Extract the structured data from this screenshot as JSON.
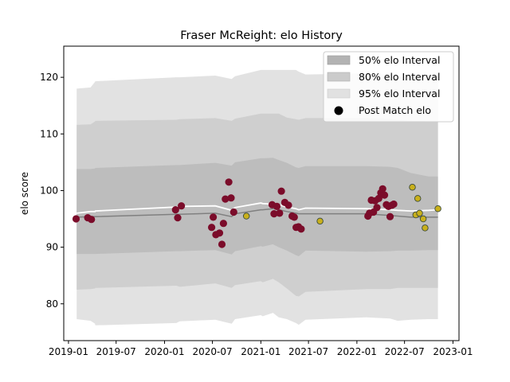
{
  "chart_data": {
    "type": "scatter",
    "title": "Fraser McReight: elo History",
    "xlabel": "",
    "ylabel": "elo score",
    "x_ticks": [
      "2019-01",
      "2019-07",
      "2020-01",
      "2020-07",
      "2021-01",
      "2021-07",
      "2022-01",
      "2022-07",
      "2023-01"
    ],
    "x_range": [
      "2018-12-14",
      "2023-01-24"
    ],
    "y_ticks": [
      80,
      90,
      100,
      110,
      120
    ],
    "ylim": [
      73.5,
      125.5
    ],
    "grid": false,
    "legend_position": "top-right",
    "legend": [
      {
        "label": "50% elo Interval",
        "color": "#b3b3b3"
      },
      {
        "label": "80% elo Interval",
        "color": "#cbcbcb"
      },
      {
        "label": "95% elo Interval",
        "color": "#e1e1e1"
      },
      {
        "label": "Post Match elo",
        "color": "#000000"
      }
    ],
    "colors": {
      "band_50": "#bdbdbd",
      "band_80": "#cfcfcf",
      "band_95": "#e2e2e2",
      "median_line": "#808080",
      "mean_line": "#ffffff",
      "point_dark": "#7b0c2a",
      "point_gold": "#c9b01c"
    },
    "bands": {
      "x": [
        "2019-02-01",
        "2019-03-26",
        "2019-04-12",
        "2019-04-13",
        "2020-02-15",
        "2020-02-28",
        "2020-07-12",
        "2020-09-12",
        "2020-09-25",
        "2021-01-01",
        "2021-01-08",
        "2021-02-16",
        "2021-03-10",
        "2021-04-10",
        "2021-05-14",
        "2021-05-25",
        "2021-06-20",
        "2022-02-05",
        "2022-05-07",
        "2022-06-05",
        "2022-07-25",
        "2022-10-01",
        "2022-11-05"
      ],
      "p2_5": [
        77.3,
        77.0,
        76.5,
        76.2,
        76.6,
        76.9,
        77.2,
        76.5,
        77.3,
        78.0,
        77.8,
        78.4,
        77.6,
        77.3,
        76.6,
        76.3,
        77.2,
        77.6,
        77.4,
        77.0,
        77.2,
        77.3,
        77.3
      ],
      "p10": [
        82.5,
        82.6,
        82.7,
        82.8,
        83.2,
        83.0,
        83.6,
        82.8,
        83.3,
        84.0,
        83.8,
        84.4,
        83.8,
        82.7,
        81.4,
        81.3,
        82.1,
        82.6,
        82.6,
        82.8,
        82.8,
        82.8,
        82.8
      ],
      "p25": [
        88.8,
        88.8,
        88.8,
        88.8,
        89.3,
        89.3,
        89.5,
        88.7,
        89.3,
        90.2,
        90.1,
        90.5,
        90.0,
        89.4,
        88.6,
        88.4,
        89.4,
        89.2,
        89.3,
        89.4,
        89.4,
        89.5,
        89.5
      ],
      "p75": [
        103.8,
        103.8,
        103.9,
        104.0,
        104.5,
        104.5,
        104.9,
        104.4,
        105.0,
        105.7,
        105.7,
        105.8,
        105.4,
        104.9,
        104.1,
        104.0,
        104.3,
        104.3,
        104.2,
        104.0,
        103.1,
        102.5,
        102.5
      ],
      "p90": [
        111.6,
        111.7,
        112.2,
        112.3,
        112.5,
        112.6,
        112.8,
        112.3,
        112.7,
        113.6,
        113.6,
        113.6,
        113.6,
        112.9,
        112.6,
        112.5,
        112.8,
        112.8,
        112.7,
        112.5,
        112.3,
        112.2,
        112.2
      ],
      "p97_5": [
        118.0,
        118.2,
        119.2,
        119.3,
        120.0,
        120.0,
        120.3,
        119.7,
        120.2,
        121.3,
        121.3,
        121.3,
        121.3,
        121.3,
        121.3,
        121.0,
        120.5,
        120.7,
        120.5,
        120.0,
        120.2,
        120.3,
        120.3
      ],
      "median": [
        95.3,
        95.4,
        95.4,
        95.4,
        95.8,
        95.8,
        96.0,
        95.4,
        95.9,
        96.6,
        96.6,
        96.8,
        96.6,
        96.3,
        96.0,
        95.9,
        95.9,
        95.9,
        95.6,
        95.5,
        95.3,
        95.3,
        95.3
      ],
      "mean": [
        96.0,
        96.3,
        96.3,
        96.4,
        97.1,
        97.2,
        97.3,
        96.5,
        97.0,
        97.8,
        97.7,
        97.6,
        97.5,
        97.1,
        96.8,
        96.6,
        96.9,
        96.8,
        96.6,
        96.5,
        96.4,
        96.5,
        96.6
      ]
    },
    "points": [
      {
        "x": "2019-01-30",
        "y": 95.0,
        "c": "d"
      },
      {
        "x": "2019-03-15",
        "y": 95.2,
        "c": "d"
      },
      {
        "x": "2019-03-29",
        "y": 94.9,
        "c": "d"
      },
      {
        "x": "2020-02-12",
        "y": 96.6,
        "c": "d"
      },
      {
        "x": "2020-02-20",
        "y": 95.2,
        "c": "d"
      },
      {
        "x": "2020-03-05",
        "y": 97.3,
        "c": "d"
      },
      {
        "x": "2020-06-28",
        "y": 93.5,
        "c": "d"
      },
      {
        "x": "2020-07-04",
        "y": 95.3,
        "c": "d"
      },
      {
        "x": "2020-07-14",
        "y": 92.2,
        "c": "d"
      },
      {
        "x": "2020-07-28",
        "y": 92.5,
        "c": "d"
      },
      {
        "x": "2020-08-06",
        "y": 90.5,
        "c": "d"
      },
      {
        "x": "2020-08-12",
        "y": 94.2,
        "c": "d"
      },
      {
        "x": "2020-08-19",
        "y": 98.5,
        "c": "d"
      },
      {
        "x": "2020-09-01",
        "y": 101.5,
        "c": "d"
      },
      {
        "x": "2020-09-10",
        "y": 98.7,
        "c": "d"
      },
      {
        "x": "2020-09-20",
        "y": 96.2,
        "c": "d"
      },
      {
        "x": "2020-11-07",
        "y": 95.5,
        "c": "g"
      },
      {
        "x": "2021-02-13",
        "y": 97.5,
        "c": "d"
      },
      {
        "x": "2021-02-20",
        "y": 95.9,
        "c": "d"
      },
      {
        "x": "2021-03-03",
        "y": 97.2,
        "c": "d"
      },
      {
        "x": "2021-03-13",
        "y": 96.0,
        "c": "d"
      },
      {
        "x": "2021-03-20",
        "y": 99.9,
        "c": "d"
      },
      {
        "x": "2021-04-02",
        "y": 97.9,
        "c": "d"
      },
      {
        "x": "2021-04-16",
        "y": 97.4,
        "c": "d"
      },
      {
        "x": "2021-04-30",
        "y": 95.5,
        "c": "d"
      },
      {
        "x": "2021-05-08",
        "y": 95.3,
        "c": "d"
      },
      {
        "x": "2021-05-15",
        "y": 93.5,
        "c": "d"
      },
      {
        "x": "2021-05-24",
        "y": 93.6,
        "c": "d"
      },
      {
        "x": "2021-06-03",
        "y": 93.2,
        "c": "d"
      },
      {
        "x": "2021-08-14",
        "y": 94.6,
        "c": "g"
      },
      {
        "x": "2022-02-12",
        "y": 95.5,
        "c": "d"
      },
      {
        "x": "2022-02-18",
        "y": 96.0,
        "c": "d"
      },
      {
        "x": "2022-02-25",
        "y": 98.3,
        "c": "d"
      },
      {
        "x": "2022-03-05",
        "y": 96.2,
        "c": "d"
      },
      {
        "x": "2022-03-11",
        "y": 98.2,
        "c": "d"
      },
      {
        "x": "2022-03-18",
        "y": 97.0,
        "c": "d"
      },
      {
        "x": "2022-03-25",
        "y": 98.6,
        "c": "d"
      },
      {
        "x": "2022-04-02",
        "y": 99.6,
        "c": "d"
      },
      {
        "x": "2022-04-09",
        "y": 100.3,
        "c": "d"
      },
      {
        "x": "2022-04-16",
        "y": 99.2,
        "c": "d"
      },
      {
        "x": "2022-04-23",
        "y": 97.5,
        "c": "d"
      },
      {
        "x": "2022-05-01",
        "y": 97.2,
        "c": "d"
      },
      {
        "x": "2022-05-07",
        "y": 95.4,
        "c": "d"
      },
      {
        "x": "2022-05-14",
        "y": 97.4,
        "c": "d"
      },
      {
        "x": "2022-05-21",
        "y": 97.6,
        "c": "d"
      },
      {
        "x": "2022-07-31",
        "y": 100.6,
        "c": "g"
      },
      {
        "x": "2022-08-13",
        "y": 95.7,
        "c": "g"
      },
      {
        "x": "2022-08-20",
        "y": 98.6,
        "c": "g"
      },
      {
        "x": "2022-08-27",
        "y": 96.0,
        "c": "g"
      },
      {
        "x": "2022-09-10",
        "y": 95.0,
        "c": "g"
      },
      {
        "x": "2022-09-17",
        "y": 93.4,
        "c": "g"
      },
      {
        "x": "2022-11-05",
        "y": 96.8,
        "c": "g"
      }
    ]
  }
}
